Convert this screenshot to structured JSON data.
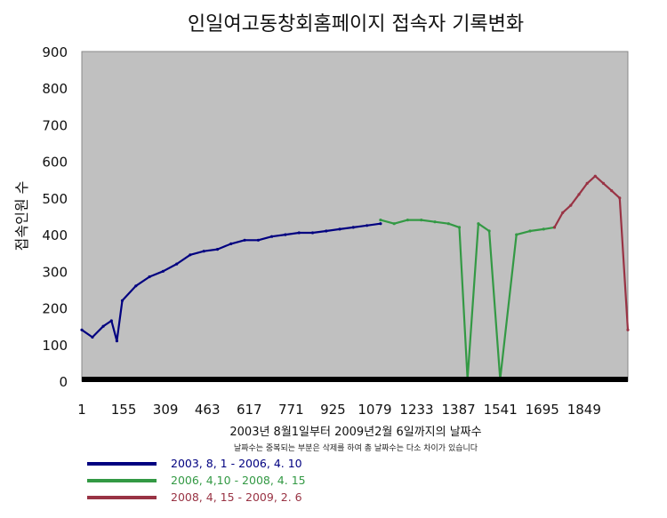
{
  "chart_data": {
    "type": "line",
    "title": "인일여고동창회홈페이지 접속자 기록변화",
    "ylabel": "접속인원 수",
    "xlabel": "2003년 8월1일부터 2009년2월 6일까지의 날짜수",
    "note": "날짜수는 중복되는 부분은 삭제를 하여 총 날짜수는 다소 차이가 있습니다",
    "xlim": [
      1,
      2010
    ],
    "ylim": [
      0,
      900
    ],
    "x_ticks": [
      "1",
      "155",
      "309",
      "463",
      "617",
      "771",
      "925",
      "1079",
      "1233",
      "1387",
      "1541",
      "1695",
      "1849"
    ],
    "y_ticks": [
      "0",
      "100",
      "200",
      "300",
      "400",
      "500",
      "600",
      "700",
      "800",
      "900"
    ],
    "grid": false,
    "legend_position": "bottom",
    "plot_background": "#c0c0c0",
    "series": [
      {
        "name": "2003, 8, 1 - 2006, 4. 10",
        "color": "#000080",
        "x": [
          1,
          40,
          80,
          110,
          130,
          150,
          200,
          250,
          300,
          350,
          400,
          450,
          500,
          550,
          600,
          650,
          700,
          750,
          800,
          850,
          900,
          950,
          1000,
          1050,
          1100
        ],
        "y": [
          140,
          120,
          150,
          165,
          110,
          220,
          260,
          285,
          300,
          320,
          345,
          355,
          360,
          375,
          385,
          385,
          395,
          400,
          405,
          405,
          410,
          415,
          420,
          425,
          430
        ]
      },
      {
        "name": "2006, 4,10 - 2008, 4. 15",
        "color": "#339944",
        "x": [
          1100,
          1150,
          1200,
          1250,
          1300,
          1350,
          1390,
          1420,
          1460,
          1500,
          1540,
          1600,
          1650,
          1700,
          1740
        ],
        "y": [
          440,
          430,
          440,
          440,
          435,
          430,
          420,
          5,
          430,
          410,
          5,
          400,
          410,
          415,
          420
        ]
      },
      {
        "name": "2008, 4, 15 - 2009, 2. 6",
        "color": "#993344",
        "x": [
          1740,
          1770,
          1800,
          1830,
          1860,
          1890,
          1920,
          1950,
          1980,
          2010
        ],
        "y": [
          420,
          460,
          480,
          510,
          540,
          560,
          540,
          520,
          500,
          140
        ]
      }
    ]
  }
}
